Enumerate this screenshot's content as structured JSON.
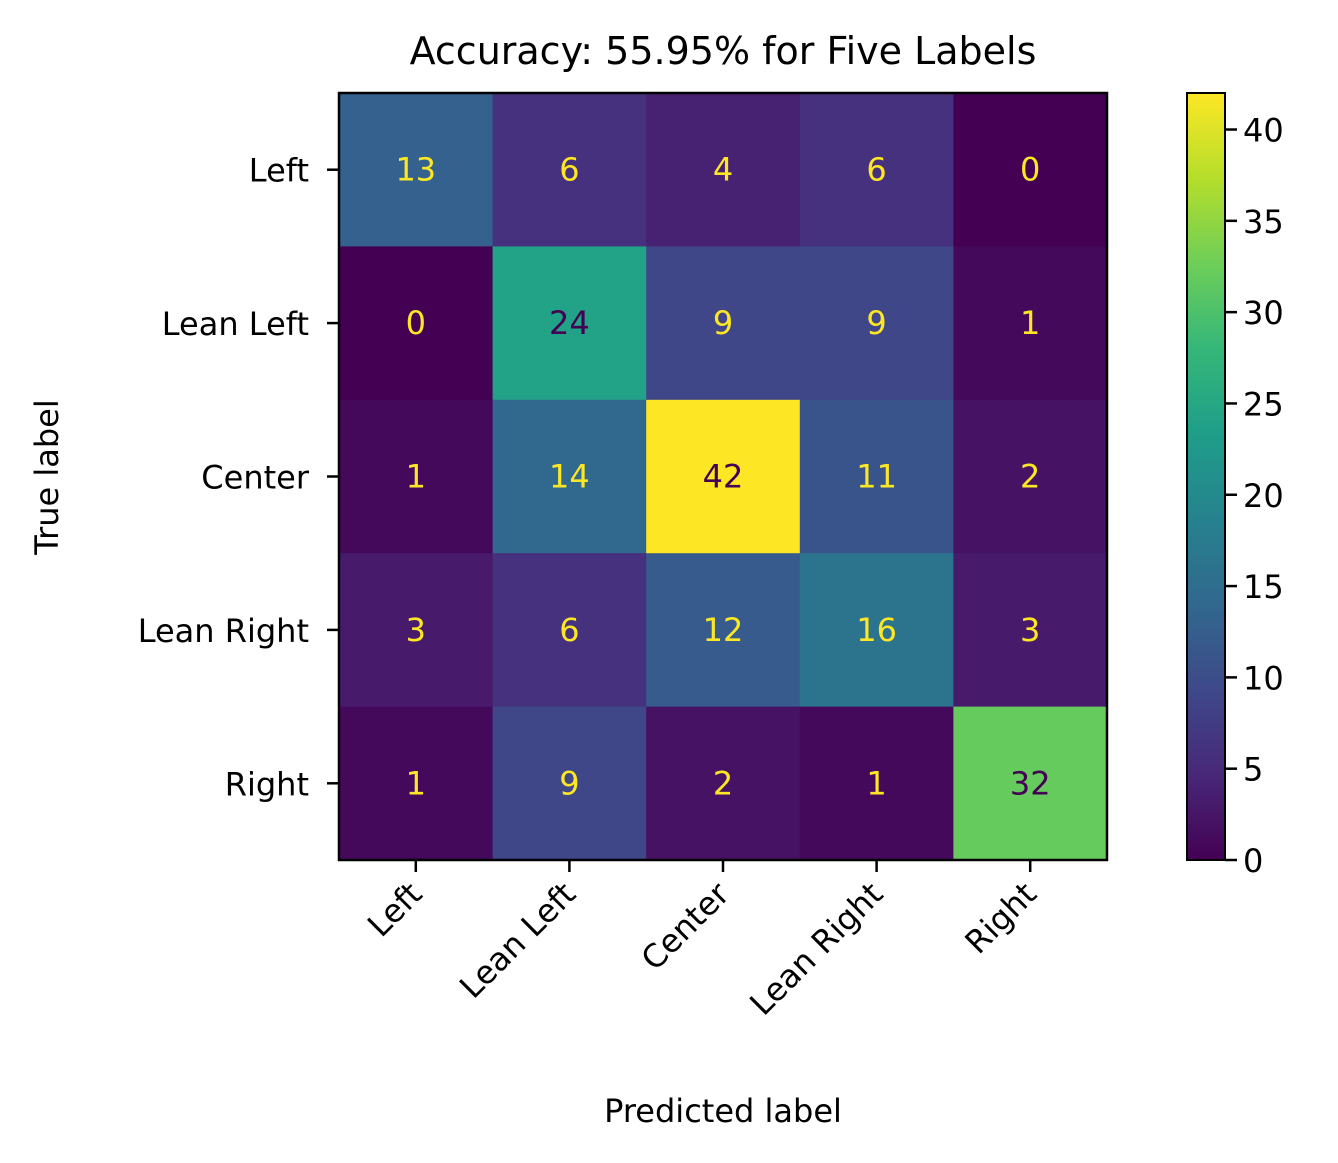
{
  "chart_data": {
    "type": "heatmap",
    "title": "Accuracy: 55.95% for Five Labels",
    "xlabel": "Predicted label",
    "ylabel": "True label",
    "x_categories": [
      "Left",
      "Lean Left",
      "Center",
      "Lean Right",
      "Right"
    ],
    "y_categories": [
      "Left",
      "Lean Left",
      "Center",
      "Lean Right",
      "Right"
    ],
    "values": [
      [
        13,
        6,
        4,
        6,
        0
      ],
      [
        0,
        24,
        9,
        9,
        1
      ],
      [
        1,
        14,
        42,
        11,
        2
      ],
      [
        3,
        6,
        12,
        16,
        3
      ],
      [
        1,
        9,
        2,
        1,
        32
      ]
    ],
    "colormap": "viridis",
    "vmin": 0,
    "vmax": 42,
    "colorbar_ticks": [
      0,
      5,
      10,
      15,
      20,
      25,
      30,
      35,
      40
    ],
    "grid": false,
    "colorbar_placement": "right",
    "annotation_colors": {
      "on_dark": "#fde725",
      "on_light": "#440154"
    }
  }
}
